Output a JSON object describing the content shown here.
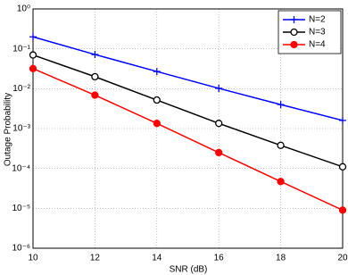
{
  "chart_data": {
    "type": "line",
    "xlabel": "SNR (dB)",
    "ylabel": "Outage Probability",
    "x": [
      10,
      12,
      14,
      16,
      18,
      20
    ],
    "series": [
      {
        "name": "N=2",
        "color": "#0000ff",
        "marker": "plus",
        "values": [
          0.2,
          0.072,
          0.027,
          0.0102,
          0.004,
          0.0016
        ]
      },
      {
        "name": "N=3",
        "color": "#000000",
        "marker": "open-circle",
        "values": [
          0.07,
          0.02,
          0.0052,
          0.00135,
          0.00038,
          0.00011
        ]
      },
      {
        "name": "N=4",
        "color": "#ff0000",
        "marker": "filled-circle",
        "values": [
          0.032,
          0.0069,
          0.00135,
          0.00025,
          4.7e-05,
          9e-06
        ]
      }
    ],
    "xlim": [
      10,
      20
    ],
    "xticks": [
      10,
      12,
      14,
      16,
      18,
      20
    ],
    "ylim": [
      1e-06,
      1
    ],
    "ylog": true,
    "yticks": [
      {
        "value": 1e-06,
        "label": "10⁻⁶"
      },
      {
        "value": 1e-05,
        "label": "10⁻⁵"
      },
      {
        "value": 0.0001,
        "label": "10⁻⁴"
      },
      {
        "value": 0.001,
        "label": "10⁻³"
      },
      {
        "value": 0.01,
        "label": "10⁻²"
      },
      {
        "value": 0.1,
        "label": "10⁻¹"
      },
      {
        "value": 1,
        "label": "10⁰"
      }
    ],
    "grid": true,
    "legend": "upper right"
  }
}
